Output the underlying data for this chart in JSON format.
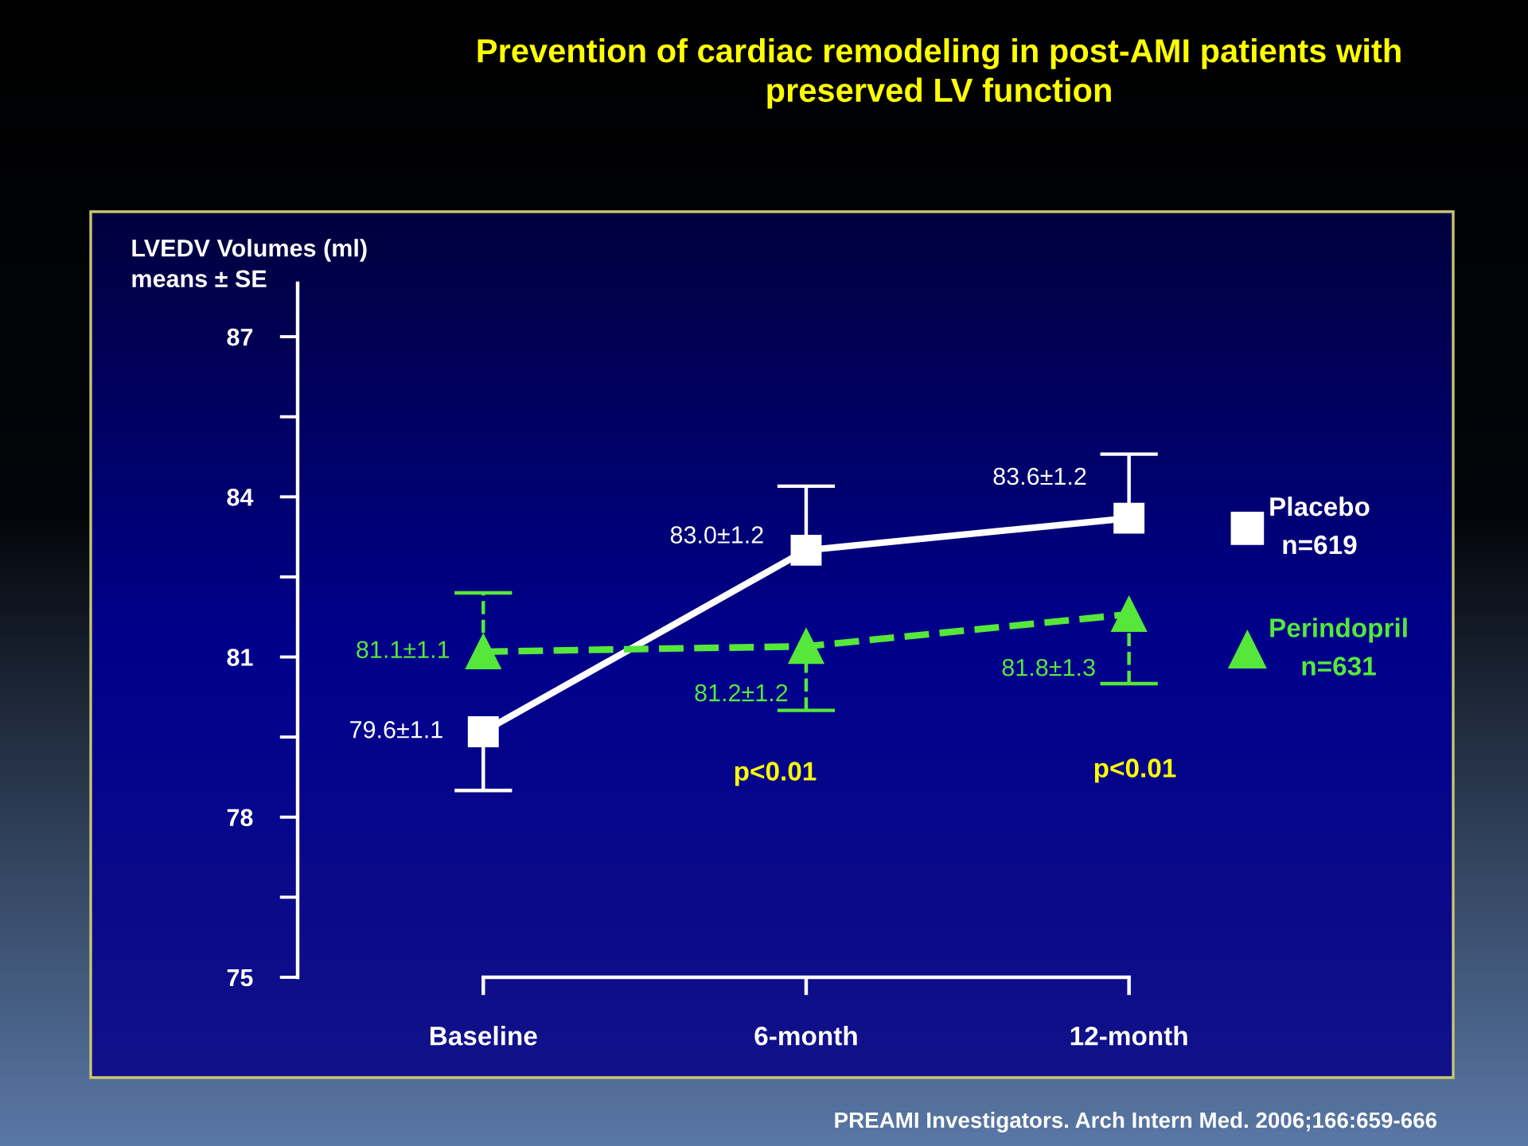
{
  "chart_data": {
    "type": "line",
    "title": "Prevention of cardiac remodeling in post-AMI patients with\npreserved LV function",
    "ylabel": "LVEDV Volumes (ml)\nmeans ± SE",
    "categories": [
      "Baseline",
      "6-month",
      "12-month"
    ],
    "series": [
      {
        "name": "Placebo\nn=619",
        "color": "#ffffff",
        "marker": "square",
        "line_style": "solid",
        "values": [
          79.6,
          83.0,
          83.6
        ],
        "errors": [
          [
            78.5,
            79.6
          ],
          [
            83.0,
            84.2
          ],
          [
            83.6,
            84.8
          ]
        ],
        "value_labels": [
          "79.6±1.1",
          "83.0±1.2",
          "83.6±1.2"
        ]
      },
      {
        "name": "Perindopril\nn=631",
        "color": "#55e83a",
        "marker": "triangle",
        "line_style": "dashed",
        "values": [
          81.1,
          81.2,
          81.8
        ],
        "errors": [
          [
            81.1,
            82.2
          ],
          [
            80.0,
            81.2
          ],
          [
            80.5,
            81.8
          ]
        ],
        "value_labels": [
          "81.1±1.1",
          "81.2±1.2",
          "81.8±1.3"
        ]
      }
    ],
    "ylim": [
      75,
      88
    ],
    "yticks": [
      75,
      78,
      81,
      84,
      87
    ],
    "legend": "right",
    "annotations": [
      "p<0.01",
      "p<0.01",
      "PREAMI Investigators. Arch Intern Med. 2006;166:659-666"
    ]
  }
}
